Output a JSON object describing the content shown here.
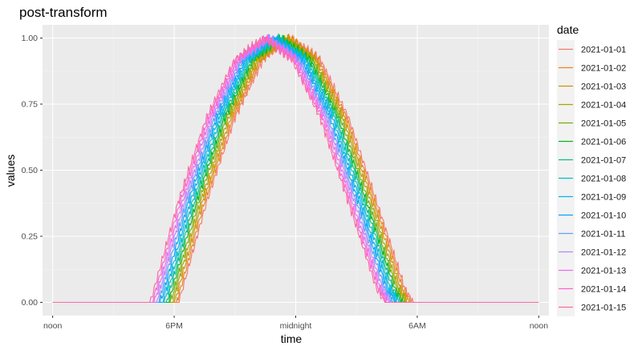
{
  "chart_data": {
    "type": "line",
    "title": "post-transform",
    "xlabel": "time",
    "ylabel": "values",
    "x_unit": "hours since noon",
    "xlim": [
      -0.5,
      24.5
    ],
    "ylim": [
      -0.05,
      1.05
    ],
    "x_ticks": [
      {
        "value": 0,
        "label": "noon"
      },
      {
        "value": 6,
        "label": "6PM"
      },
      {
        "value": 12,
        "label": "midnight"
      },
      {
        "value": 18,
        "label": "6AM"
      },
      {
        "value": 24,
        "label": "noon"
      }
    ],
    "y_ticks": [
      {
        "value": 0,
        "label": "0.00"
      },
      {
        "value": 0.25,
        "label": "0.25"
      },
      {
        "value": 0.5,
        "label": "0.50"
      },
      {
        "value": 0.75,
        "label": "0.75"
      },
      {
        "value": 1,
        "label": "1.00"
      }
    ],
    "grid": true,
    "legend": {
      "title": "date",
      "position": "right"
    },
    "series": [
      {
        "name": "2021-01-01",
        "color": "#F8766D",
        "x": [
          0,
          6.2,
          6.3,
          7.6,
          9.0,
          10.4,
          11.8,
          13.2,
          14.6,
          16.0,
          17.4,
          17.8,
          24
        ],
        "values": [
          0,
          0,
          0.02,
          0.38,
          0.7,
          0.92,
          1.0,
          0.92,
          0.7,
          0.38,
          0.05,
          0,
          0
        ]
      },
      {
        "name": "2021-01-02",
        "color": "#E7861B",
        "x": [
          0,
          6.1,
          6.2,
          7.5,
          8.9,
          10.3,
          11.7,
          13.1,
          14.5,
          15.9,
          17.3,
          17.7,
          24
        ],
        "values": [
          0,
          0,
          0.02,
          0.38,
          0.7,
          0.92,
          1.0,
          0.92,
          0.7,
          0.38,
          0.05,
          0,
          0
        ]
      },
      {
        "name": "2021-01-03",
        "color": "#D39200",
        "x": [
          0,
          6.0,
          6.1,
          7.4,
          8.8,
          10.2,
          11.6,
          13.0,
          14.4,
          15.8,
          17.2,
          17.6,
          24
        ],
        "values": [
          0,
          0,
          0.02,
          0.38,
          0.7,
          0.92,
          1.0,
          0.92,
          0.7,
          0.38,
          0.05,
          0,
          0
        ]
      },
      {
        "name": "2021-01-04",
        "color": "#AFA100",
        "x": [
          0,
          5.9,
          6.0,
          7.3,
          8.7,
          10.1,
          11.5,
          12.9,
          14.3,
          15.7,
          17.1,
          17.5,
          24
        ],
        "values": [
          0,
          0,
          0.02,
          0.38,
          0.7,
          0.92,
          1.0,
          0.92,
          0.7,
          0.38,
          0.05,
          0,
          0
        ]
      },
      {
        "name": "2021-01-05",
        "color": "#72B000",
        "x": [
          0,
          5.8,
          5.9,
          7.2,
          8.6,
          10.0,
          11.4,
          12.8,
          14.2,
          15.6,
          17.0,
          17.4,
          24
        ],
        "values": [
          0,
          0,
          0.02,
          0.38,
          0.7,
          0.92,
          1.0,
          0.92,
          0.7,
          0.38,
          0.05,
          0,
          0
        ]
      },
      {
        "name": "2021-01-06",
        "color": "#00B81F",
        "x": [
          0,
          5.7,
          5.8,
          7.1,
          8.5,
          9.9,
          11.3,
          12.7,
          14.1,
          15.5,
          16.9,
          17.3,
          24
        ],
        "values": [
          0,
          0,
          0.02,
          0.38,
          0.7,
          0.92,
          1.0,
          0.92,
          0.7,
          0.38,
          0.05,
          0,
          0
        ]
      },
      {
        "name": "2021-01-07",
        "color": "#00C08B",
        "x": [
          0,
          5.6,
          5.7,
          7.0,
          8.4,
          9.8,
          11.2,
          12.6,
          14.0,
          15.4,
          16.8,
          17.2,
          24
        ],
        "values": [
          0,
          0,
          0.02,
          0.38,
          0.7,
          0.92,
          1.0,
          0.92,
          0.7,
          0.38,
          0.05,
          0,
          0
        ]
      },
      {
        "name": "2021-01-08",
        "color": "#00BFC4",
        "x": [
          0,
          5.5,
          5.6,
          6.9,
          8.3,
          9.7,
          11.1,
          12.5,
          13.9,
          15.3,
          16.7,
          17.1,
          24
        ],
        "values": [
          0,
          0,
          0.02,
          0.38,
          0.7,
          0.92,
          1.0,
          0.92,
          0.7,
          0.38,
          0.05,
          0,
          0
        ]
      },
      {
        "name": "2021-01-09",
        "color": "#00B4F0",
        "x": [
          0,
          5.4,
          5.5,
          6.8,
          8.2,
          9.6,
          11.0,
          12.4,
          13.8,
          15.2,
          16.6,
          17.0,
          24
        ],
        "values": [
          0,
          0,
          0.02,
          0.38,
          0.7,
          0.92,
          1.0,
          0.92,
          0.7,
          0.38,
          0.05,
          0,
          0
        ]
      },
      {
        "name": "2021-01-10",
        "color": "#00A5FF",
        "x": [
          0,
          5.3,
          5.4,
          6.7,
          8.1,
          9.5,
          10.9,
          12.3,
          13.7,
          15.1,
          16.5,
          16.9,
          24
        ],
        "values": [
          0,
          0,
          0.02,
          0.38,
          0.7,
          0.92,
          1.0,
          0.92,
          0.7,
          0.38,
          0.05,
          0,
          0
        ]
      },
      {
        "name": "2021-01-11",
        "color": "#619CFF",
        "x": [
          0,
          5.2,
          5.3,
          6.6,
          8.0,
          9.4,
          10.8,
          12.2,
          13.6,
          15.0,
          16.4,
          16.8,
          24
        ],
        "values": [
          0,
          0,
          0.02,
          0.38,
          0.7,
          0.92,
          1.0,
          0.92,
          0.7,
          0.38,
          0.05,
          0,
          0
        ]
      },
      {
        "name": "2021-01-12",
        "color": "#B983FF",
        "x": [
          0,
          5.1,
          5.2,
          6.5,
          7.9,
          9.3,
          10.7,
          12.1,
          13.5,
          14.9,
          16.3,
          16.7,
          24
        ],
        "values": [
          0,
          0,
          0.02,
          0.38,
          0.7,
          0.92,
          1.0,
          0.92,
          0.7,
          0.38,
          0.05,
          0,
          0
        ]
      },
      {
        "name": "2021-01-13",
        "color": "#E76BF3",
        "x": [
          0,
          5.0,
          5.1,
          6.4,
          7.8,
          9.2,
          10.6,
          12.0,
          13.4,
          14.8,
          16.2,
          16.6,
          24
        ],
        "values": [
          0,
          0,
          0.02,
          0.38,
          0.7,
          0.92,
          1.0,
          0.92,
          0.7,
          0.38,
          0.05,
          0,
          0
        ]
      },
      {
        "name": "2021-01-14",
        "color": "#FD61D1",
        "x": [
          0,
          4.9,
          5.0,
          6.3,
          7.7,
          9.1,
          10.5,
          11.9,
          13.3,
          14.7,
          16.1,
          16.5,
          24
        ],
        "values": [
          0,
          0,
          0.02,
          0.38,
          0.7,
          0.92,
          1.0,
          0.92,
          0.7,
          0.38,
          0.05,
          0,
          0
        ]
      },
      {
        "name": "2021-01-15",
        "color": "#FF67A4",
        "x": [
          0,
          4.8,
          4.9,
          6.2,
          7.6,
          9.0,
          10.4,
          11.8,
          13.2,
          14.6,
          16.0,
          16.4,
          24
        ],
        "values": [
          0,
          0,
          0.02,
          0.38,
          0.7,
          0.92,
          1.0,
          0.92,
          0.7,
          0.38,
          0.05,
          0,
          0
        ]
      }
    ]
  }
}
